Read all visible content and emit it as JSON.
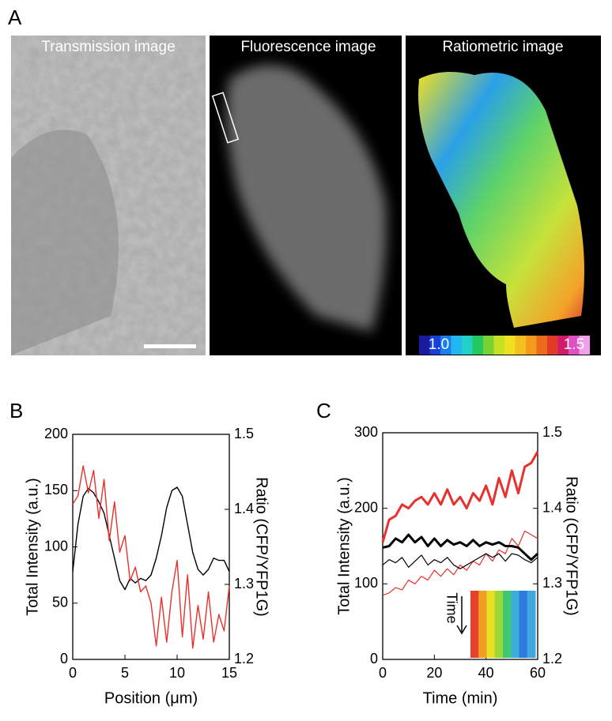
{
  "panel_a": {
    "label": "A",
    "images": [
      "Transmission image",
      "Fluorescence image",
      "Ratiometric image"
    ],
    "colorbar": {
      "min_label": "1.0",
      "max_label": "1.5"
    }
  },
  "chart_data": [
    {
      "type": "line",
      "label": "B",
      "xlabel": "Position (μm)",
      "ylabel": "Total Intensity (a.u.)",
      "y2label": "Ratio (CFP/YFP1G)",
      "xlim": [
        0,
        15
      ],
      "xticks": [
        0,
        5,
        10,
        15
      ],
      "ylim": [
        0,
        200
      ],
      "yticks": [
        0,
        50,
        100,
        150,
        200
      ],
      "y2lim": [
        1.2,
        1.5
      ],
      "y2ticks": [
        1.2,
        1.3,
        1.4,
        1.5
      ],
      "x": [
        0,
        0.5,
        1,
        1.5,
        2,
        2.5,
        3,
        3.5,
        4,
        4.5,
        5,
        5.5,
        6,
        6.5,
        7,
        7.5,
        8,
        8.5,
        9,
        9.5,
        10,
        10.5,
        11,
        11.5,
        12,
        12.5,
        13,
        13.5,
        14,
        14.5,
        15
      ],
      "series": [
        {
          "color": "#000000",
          "width": 1.4,
          "values": [
            78,
            120,
            145,
            152,
            148,
            140,
            130,
            110,
            90,
            70,
            62,
            72,
            68,
            72,
            70,
            75,
            90,
            110,
            135,
            150,
            153,
            145,
            120,
            95,
            80,
            75,
            80,
            90,
            88,
            88,
            78
          ]
        },
        {
          "color": "#e8302c",
          "width": 1.4,
          "axis": "y2",
          "values": [
            1.407,
            1.418,
            1.458,
            1.422,
            1.452,
            1.388,
            1.44,
            1.358,
            1.41,
            1.343,
            1.365,
            1.305,
            1.323,
            1.29,
            1.298,
            1.275,
            1.218,
            1.283,
            1.223,
            1.29,
            1.332,
            1.23,
            1.313,
            1.215,
            1.272,
            1.227,
            1.29,
            1.223,
            1.26,
            1.238,
            1.298
          ]
        }
      ]
    },
    {
      "type": "line",
      "label": "C",
      "xlabel": "Time (min)",
      "ylabel": "Total Intensity (a.u.)",
      "y2label": "Ratio (CFP/YFP1G)",
      "inset_label": "Time",
      "xlim": [
        0,
        60
      ],
      "xticks": [
        0,
        20,
        40,
        60
      ],
      "ylim": [
        0,
        300
      ],
      "yticks": [
        0,
        100,
        200,
        300
      ],
      "y2lim": [
        1.2,
        1.5
      ],
      "y2ticks": [
        1.2,
        1.3,
        1.4,
        1.5
      ],
      "x": [
        0,
        2.5,
        5,
        7.5,
        10,
        12.5,
        15,
        17.5,
        20,
        22.5,
        25,
        27.5,
        30,
        32.5,
        35,
        37.5,
        40,
        42.5,
        45,
        47.5,
        50,
        52.5,
        55,
        57.5,
        60
      ],
      "series": [
        {
          "color": "#e8302c",
          "width": 3,
          "axis": "y2",
          "values": [
            1.355,
            1.385,
            1.39,
            1.405,
            1.4,
            1.41,
            1.415,
            1.405,
            1.42,
            1.405,
            1.425,
            1.405,
            1.415,
            1.4,
            1.42,
            1.41,
            1.43,
            1.405,
            1.44,
            1.415,
            1.45,
            1.42,
            1.455,
            1.46,
            1.475
          ]
        },
        {
          "color": "#e8302c",
          "width": 1.2,
          "axis": "y2",
          "values": [
            1.285,
            1.288,
            1.295,
            1.292,
            1.305,
            1.3,
            1.31,
            1.305,
            1.318,
            1.31,
            1.32,
            1.312,
            1.325,
            1.318,
            1.33,
            1.325,
            1.34,
            1.33,
            1.345,
            1.34,
            1.36,
            1.35,
            1.37,
            1.365,
            1.36
          ]
        },
        {
          "color": "#000000",
          "width": 3,
          "values": [
            148,
            150,
            160,
            155,
            165,
            155,
            162,
            150,
            160,
            150,
            158,
            152,
            155,
            150,
            158,
            150,
            155,
            152,
            155,
            150,
            150,
            148,
            140,
            132,
            140
          ]
        },
        {
          "color": "#000000",
          "width": 1.2,
          "values": [
            125,
            132,
            128,
            135,
            122,
            130,
            138,
            125,
            132,
            128,
            135,
            125,
            120,
            125,
            130,
            135,
            140,
            135,
            140,
            130,
            140,
            138,
            132,
            128,
            135
          ]
        }
      ]
    }
  ]
}
